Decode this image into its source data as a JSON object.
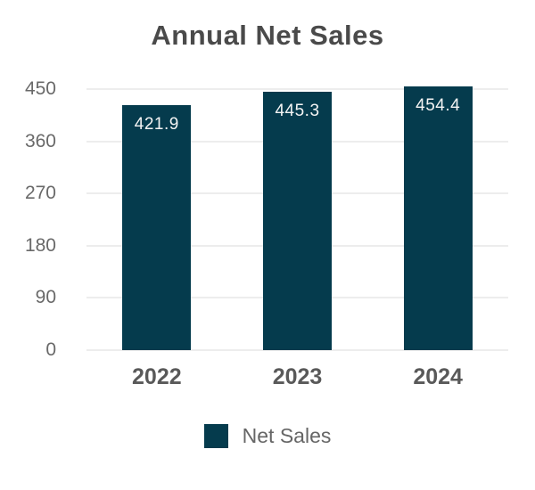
{
  "chart": {
    "title": "Annual Net Sales",
    "legend": {
      "label": "Net Sales"
    }
  },
  "chart_data": {
    "type": "bar",
    "title": "Annual Net Sales",
    "categories": [
      "2022",
      "2023",
      "2024"
    ],
    "series": [
      {
        "name": "Net Sales",
        "values": [
          421.9,
          445.3,
          454.4
        ]
      }
    ],
    "value_labels": [
      "421.9",
      "445.3",
      "454.4"
    ],
    "xlabel": "",
    "ylabel": "",
    "ylim": [
      0,
      450
    ],
    "yticks": [
      0,
      90,
      180,
      270,
      360,
      450
    ],
    "grid": true,
    "legend_position": "bottom"
  },
  "colors": {
    "bar": "#053B4D",
    "gridline": "#ededed",
    "title_text": "#4a4a4a",
    "axis_text": "#696969",
    "x_label_text": "#595959",
    "value_text": "#f4f4f4",
    "legend_text": "#666666",
    "background": "#ffffff"
  }
}
